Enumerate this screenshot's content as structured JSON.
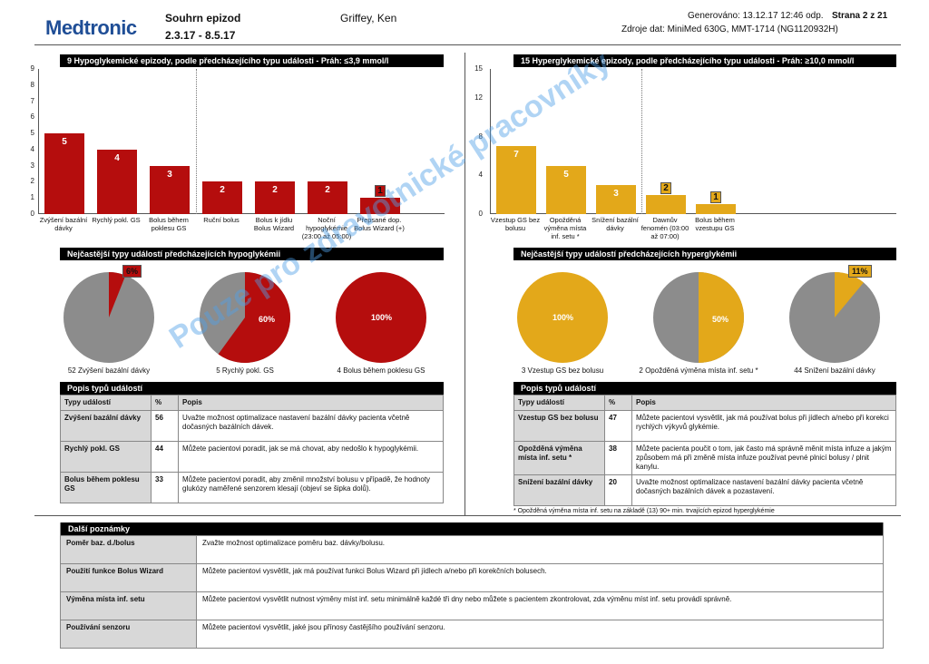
{
  "header": {
    "logo": "Medtronic",
    "title": "Souhrn epizod",
    "dates": "2.3.17 - 8.5.17",
    "patient": "Griffey, Ken",
    "generated": "Generováno: 13.12.17 12:46 odp.",
    "page": "Strana 2 z 21",
    "source": "Zdroje dat: MiniMed 630G, MMT-1714 (NG1120932H)"
  },
  "colors": {
    "hypo": "#b50d0d",
    "hyper": "#e3a81a",
    "pie_gray": "#8c8c8c"
  },
  "hypo": {
    "title": "9 Hypoglykemické epizody, podle předcházejícího typu události   -   Práh: ≤3,9 mmol/l",
    "axis_ticks": [
      "9",
      "8",
      "7",
      "6",
      "5",
      "4",
      "3",
      "2",
      "1",
      "0"
    ],
    "pies_title": "Nejčastější typy událostí předcházejících hypoglykémii",
    "pies": [
      {
        "percent": 6,
        "label": "6%",
        "caption": "52 Zvýšení bazální dávky"
      },
      {
        "percent": 60,
        "label": "60%",
        "caption": "5 Rychlý pokl. GS"
      },
      {
        "percent": 100,
        "label": "100%",
        "caption": "4 Bolus během poklesu GS"
      }
    ],
    "table": {
      "title": "Popis typů událostí",
      "headers": [
        "Typy událostí",
        "%",
        "Popis"
      ],
      "rows": [
        {
          "type": "Zvýšení bazální dávky",
          "pct": "56",
          "desc": "Uvažte možnost optimalizace nastavení bazální dávky pacienta včetně dočasných bazálních dávek."
        },
        {
          "type": "Rychlý pokl. GS",
          "pct": "44",
          "desc": "Můžete pacientovi poradit, jak se má chovat, aby nedošlo k hypoglykémii."
        },
        {
          "type": "Bolus během poklesu GS",
          "pct": "33",
          "desc": "Můžete pacientovi poradit, aby změnil množství bolusu v případě, že hodnoty glukózy naměřené senzorem klesají (objeví se šipka dolů)."
        }
      ]
    }
  },
  "hyper": {
    "title": "15 Hyperglykemické epizody, podle předcházejícího typu události   -   Práh: ≥10,0 mmol/l",
    "axis_ticks": [
      "15",
      "12",
      "8",
      "4",
      "0"
    ],
    "pies_title": "Nejčastější typy událostí předcházejících hyperglykémii",
    "pies": [
      {
        "percent": 100,
        "label": "100%",
        "caption": "3 Vzestup GS bez bolusu"
      },
      {
        "percent": 50,
        "label": "50%",
        "caption": "2 Opožděná výměna místa inf. setu *"
      },
      {
        "percent": 11,
        "label": "11%",
        "caption": "44 Snížení bazální dávky"
      }
    ],
    "table": {
      "title": "Popis typů událostí",
      "headers": [
        "Typy událostí",
        "%",
        "Popis"
      ],
      "rows": [
        {
          "type": "Vzestup GS bez bolusu",
          "pct": "47",
          "desc": "Můžete pacientovi vysvětlit, jak má používat bolus při jídlech a/nebo při korekci rychlých výkyvů glykémie."
        },
        {
          "type": "Opožděná výměna místa inf. setu *",
          "pct": "38",
          "desc": "Můžete pacienta poučit o tom, jak často má správně měnit místa infuze a jakým způsobem má při změně místa infuze používat pevné plnicí bolusy / plnit kanylu."
        },
        {
          "type": "Snížení bazální dávky",
          "pct": "20",
          "desc": "Uvažte možnost optimalizace nastavení bazální dávky pacienta včetně dočasných bazálních dávek a pozastavení."
        }
      ],
      "footnote": "* Opožděná výměna místa inf. setu na základě (13) 90+ min. trvajících epizod hyperglykémie"
    }
  },
  "notes": {
    "title": "Další poznámky",
    "rows": [
      {
        "k": "Poměr baz. d./bolus",
        "v": "Zvažte možnost optimalizace poměru baz. dávky/bolusu."
      },
      {
        "k": "Použití funkce Bolus Wizard",
        "v": "Můžete pacientovi vysvětlit, jak má používat funkci Bolus Wizard při jídlech a/nebo při korekčních bolusech."
      },
      {
        "k": "Výměna místa inf. setu",
        "v": "Můžete pacientovi vysvětlit nutnost výměny míst inf. setu minimálně každé tři dny nebo můžete s pacientem zkontrolovat, zda výměnu míst inf. setu provádí správně."
      },
      {
        "k": "Používání senzoru",
        "v": "Můžete pacientovi vysvětlit, jaké jsou přínosy častějšího používání senzoru."
      }
    ]
  },
  "watermark": "Pouze pro zdravotnické pracovníky",
  "chart_data": [
    {
      "type": "bar",
      "categories": [
        "Zvýšení bazální dávky",
        "Rychlý pokl. GS",
        "Bolus během poklesu GS",
        "Ruční bolus",
        "Bolus k jídlu Bolus Wizard",
        "Noční hypoglykémie (23:00 až 05:00)",
        "Přepsané dop. Bolus Wizard (+)"
      ],
      "values": [
        5,
        4,
        3,
        2,
        2,
        2,
        1
      ],
      "ylim": [
        0,
        9
      ]
    },
    {
      "type": "bar",
      "categories": [
        "Vzestup GS bez bolusu",
        "Opožděná výměna místa inf. setu *",
        "Snížení bazální dávky",
        "Dawnův fenomén (03:00 až 07:00)",
        "Bolus během vzestupu GS"
      ],
      "values": [
        7,
        5,
        3,
        2,
        1
      ],
      "ylim": [
        0,
        15
      ]
    }
  ]
}
